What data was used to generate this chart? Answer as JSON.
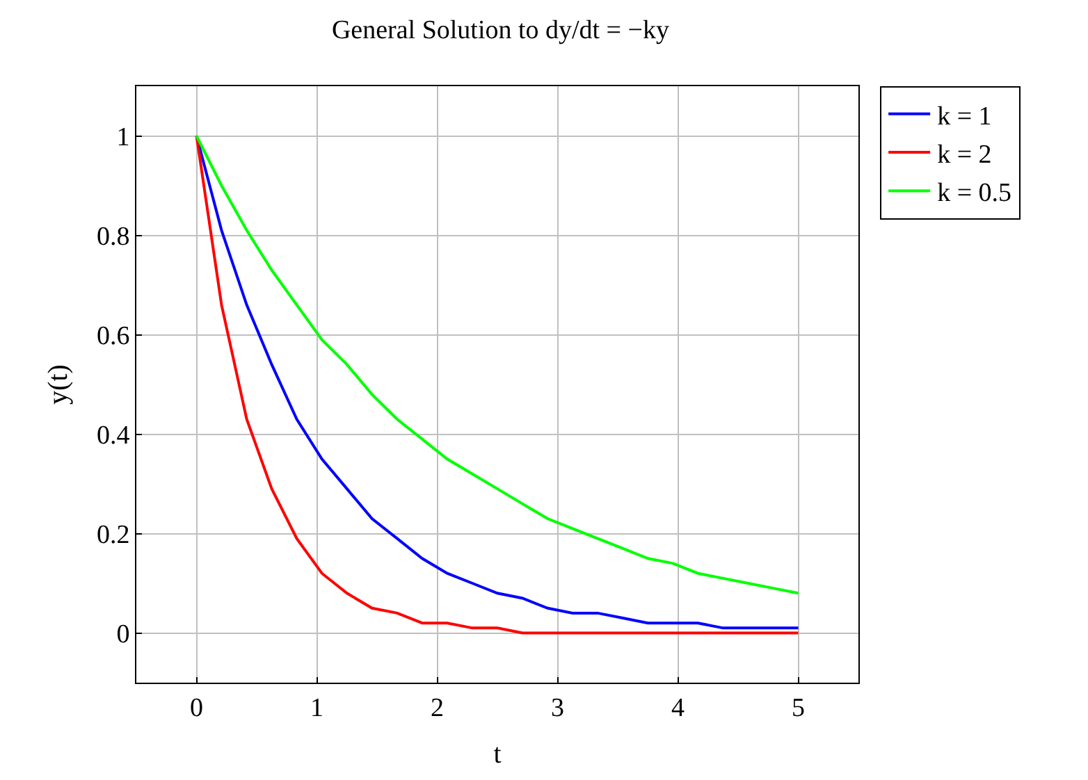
{
  "chart_data": {
    "type": "line",
    "title": "General Solution to dy/dt = −ky",
    "xlabel": "t",
    "ylabel": "y(t)",
    "x": [
      0,
      0.208,
      0.417,
      0.625,
      0.833,
      1.042,
      1.25,
      1.458,
      1.667,
      1.875,
      2.083,
      2.292,
      2.5,
      2.708,
      2.917,
      3.125,
      3.333,
      3.542,
      3.75,
      3.958,
      4.167,
      4.375,
      4.583,
      4.792,
      5
    ],
    "series": [
      {
        "name": "k = 1",
        "color": "#0000ff",
        "values": [
          1,
          0.81,
          0.66,
          0.54,
          0.43,
          0.35,
          0.29,
          0.23,
          0.19,
          0.15,
          0.12,
          0.1,
          0.08,
          0.07,
          0.05,
          0.04,
          0.04,
          0.03,
          0.02,
          0.02,
          0.02,
          0.01,
          0.01,
          0.01,
          0.01
        ]
      },
      {
        "name": "k = 2",
        "color": "#ff0000",
        "values": [
          1,
          0.66,
          0.43,
          0.29,
          0.19,
          0.12,
          0.08,
          0.05,
          0.04,
          0.02,
          0.02,
          0.01,
          0.01,
          0,
          0,
          0,
          0,
          0,
          0,
          0,
          0,
          0,
          0,
          0,
          0
        ]
      },
      {
        "name": "k = 0.5",
        "color": "#00ff00",
        "values": [
          1,
          0.9,
          0.81,
          0.73,
          0.66,
          0.59,
          0.54,
          0.48,
          0.43,
          0.39,
          0.35,
          0.32,
          0.29,
          0.26,
          0.23,
          0.21,
          0.19,
          0.17,
          0.15,
          0.14,
          0.12,
          0.11,
          0.1,
          0.09,
          0.08
        ]
      }
    ],
    "xlim": [
      -0.5,
      5.5
    ],
    "ylim": [
      -0.1,
      1.1
    ],
    "xticks": [
      0,
      1,
      2,
      3,
      4,
      5
    ],
    "yticks": [
      0,
      0.2,
      0.4,
      0.6,
      0.8,
      1
    ],
    "grid": true,
    "legend": "top right",
    "marker": "none",
    "line_style": "solid"
  }
}
